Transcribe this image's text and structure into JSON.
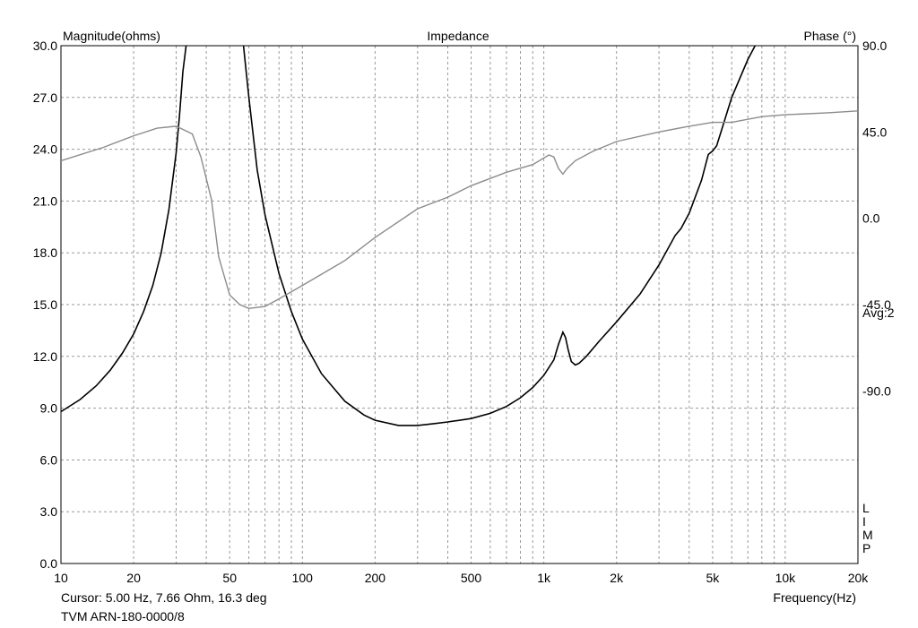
{
  "chart_data": {
    "type": "line",
    "title": "Impedance",
    "xlabel": "Frequency(Hz)",
    "ylabel_left": "Magnitude(ohms)",
    "ylabel_right": "Phase (°)",
    "x_scale": "log",
    "xlim": [
      10,
      20000
    ],
    "ylim_left": [
      0,
      30
    ],
    "ylim_right": [
      -180,
      90
    ],
    "grid": true,
    "x_ticks": [
      {
        "value": 10,
        "label": "10"
      },
      {
        "value": 20,
        "label": "20"
      },
      {
        "value": 50,
        "label": "50"
      },
      {
        "value": 100,
        "label": "100"
      },
      {
        "value": 200,
        "label": "200"
      },
      {
        "value": 500,
        "label": "500"
      },
      {
        "value": 1000,
        "label": "1k"
      },
      {
        "value": 2000,
        "label": "2k"
      },
      {
        "value": 5000,
        "label": "5k"
      },
      {
        "value": 10000,
        "label": "10k"
      },
      {
        "value": 20000,
        "label": "20k"
      }
    ],
    "y_ticks_left": [
      "0.0",
      "3.0",
      "6.0",
      "9.0",
      "12.0",
      "15.0",
      "18.0",
      "21.0",
      "24.0",
      "27.0",
      "30.0"
    ],
    "y_ticks_right": [
      {
        "value": 90,
        "label": "90.0"
      },
      {
        "value": 45,
        "label": "45.0"
      },
      {
        "value": 0,
        "label": "0.0"
      },
      {
        "value": -45,
        "label": "-45.0"
      },
      {
        "value": -90,
        "label": "-90.0"
      }
    ],
    "right_annotation": "Avg:2",
    "side_letters": [
      "L",
      "I",
      "M",
      "P"
    ],
    "series": [
      {
        "axis": "left",
        "color": "#000000",
        "points": [
          [
            10,
            8.8
          ],
          [
            12,
            9.5
          ],
          [
            14,
            10.3
          ],
          [
            16,
            11.2
          ],
          [
            18,
            12.2
          ],
          [
            20,
            13.3
          ],
          [
            22,
            14.6
          ],
          [
            24,
            16.1
          ],
          [
            26,
            18.0
          ],
          [
            28,
            20.5
          ],
          [
            30,
            23.8
          ],
          [
            31,
            26.0
          ],
          [
            32,
            28.5
          ],
          [
            33,
            30
          ]
        ]
      },
      {
        "axis": "left",
        "color": "#000000",
        "points": [
          [
            57,
            30
          ],
          [
            60,
            27.0
          ],
          [
            65,
            22.8
          ],
          [
            70,
            20.2
          ],
          [
            80,
            16.8
          ],
          [
            90,
            14.6
          ],
          [
            100,
            13.0
          ],
          [
            120,
            11.0
          ],
          [
            150,
            9.4
          ],
          [
            180,
            8.6
          ],
          [
            200,
            8.3
          ],
          [
            250,
            8.0
          ],
          [
            300,
            8.0
          ],
          [
            350,
            8.1
          ],
          [
            400,
            8.2
          ],
          [
            500,
            8.4
          ],
          [
            600,
            8.7
          ],
          [
            700,
            9.1
          ],
          [
            800,
            9.6
          ],
          [
            900,
            10.2
          ],
          [
            1000,
            10.9
          ],
          [
            1100,
            11.8
          ],
          [
            1150,
            12.7
          ],
          [
            1200,
            13.4
          ],
          [
            1230,
            13.1
          ],
          [
            1260,
            12.4
          ],
          [
            1300,
            11.7
          ],
          [
            1350,
            11.5
          ],
          [
            1400,
            11.6
          ],
          [
            1500,
            12.0
          ],
          [
            1700,
            12.9
          ],
          [
            2000,
            14.0
          ],
          [
            2500,
            15.6
          ],
          [
            3000,
            17.3
          ],
          [
            3500,
            19.0
          ],
          [
            3700,
            19.4
          ],
          [
            4000,
            20.3
          ],
          [
            4500,
            22.2
          ],
          [
            4800,
            23.7
          ],
          [
            5000,
            23.9
          ],
          [
            5200,
            24.2
          ],
          [
            5500,
            25.3
          ],
          [
            6000,
            27.0
          ],
          [
            7000,
            29.2
          ],
          [
            7500,
            30
          ]
        ]
      },
      {
        "axis": "right",
        "color": "#8c8c8c",
        "points": [
          [
            10,
            30
          ],
          [
            15,
            37
          ],
          [
            20,
            43
          ],
          [
            25,
            47
          ],
          [
            30,
            48
          ],
          [
            35,
            44
          ],
          [
            38,
            32
          ],
          [
            42,
            10
          ],
          [
            45,
            -20
          ],
          [
            50,
            -40
          ],
          [
            55,
            -45
          ],
          [
            60,
            -47
          ],
          [
            70,
            -46
          ],
          [
            80,
            -42
          ],
          [
            100,
            -35
          ],
          [
            150,
            -22
          ],
          [
            200,
            -10
          ],
          [
            300,
            5
          ],
          [
            400,
            11
          ],
          [
            500,
            17
          ],
          [
            700,
            24
          ],
          [
            900,
            28
          ],
          [
            1050,
            33
          ],
          [
            1100,
            32
          ],
          [
            1150,
            26
          ],
          [
            1200,
            23
          ],
          [
            1250,
            26
          ],
          [
            1350,
            30
          ],
          [
            1600,
            35
          ],
          [
            2000,
            40
          ],
          [
            3000,
            45
          ],
          [
            4000,
            48
          ],
          [
            5000,
            50
          ],
          [
            6000,
            50
          ],
          [
            8000,
            53
          ],
          [
            10000,
            54
          ],
          [
            15000,
            55
          ],
          [
            20000,
            56
          ]
        ]
      }
    ]
  },
  "footer": {
    "cursor": "Cursor: 5.00 Hz, 7.66 Ohm, 16.3 deg",
    "model": "TVM ARN-180-0000/8"
  }
}
